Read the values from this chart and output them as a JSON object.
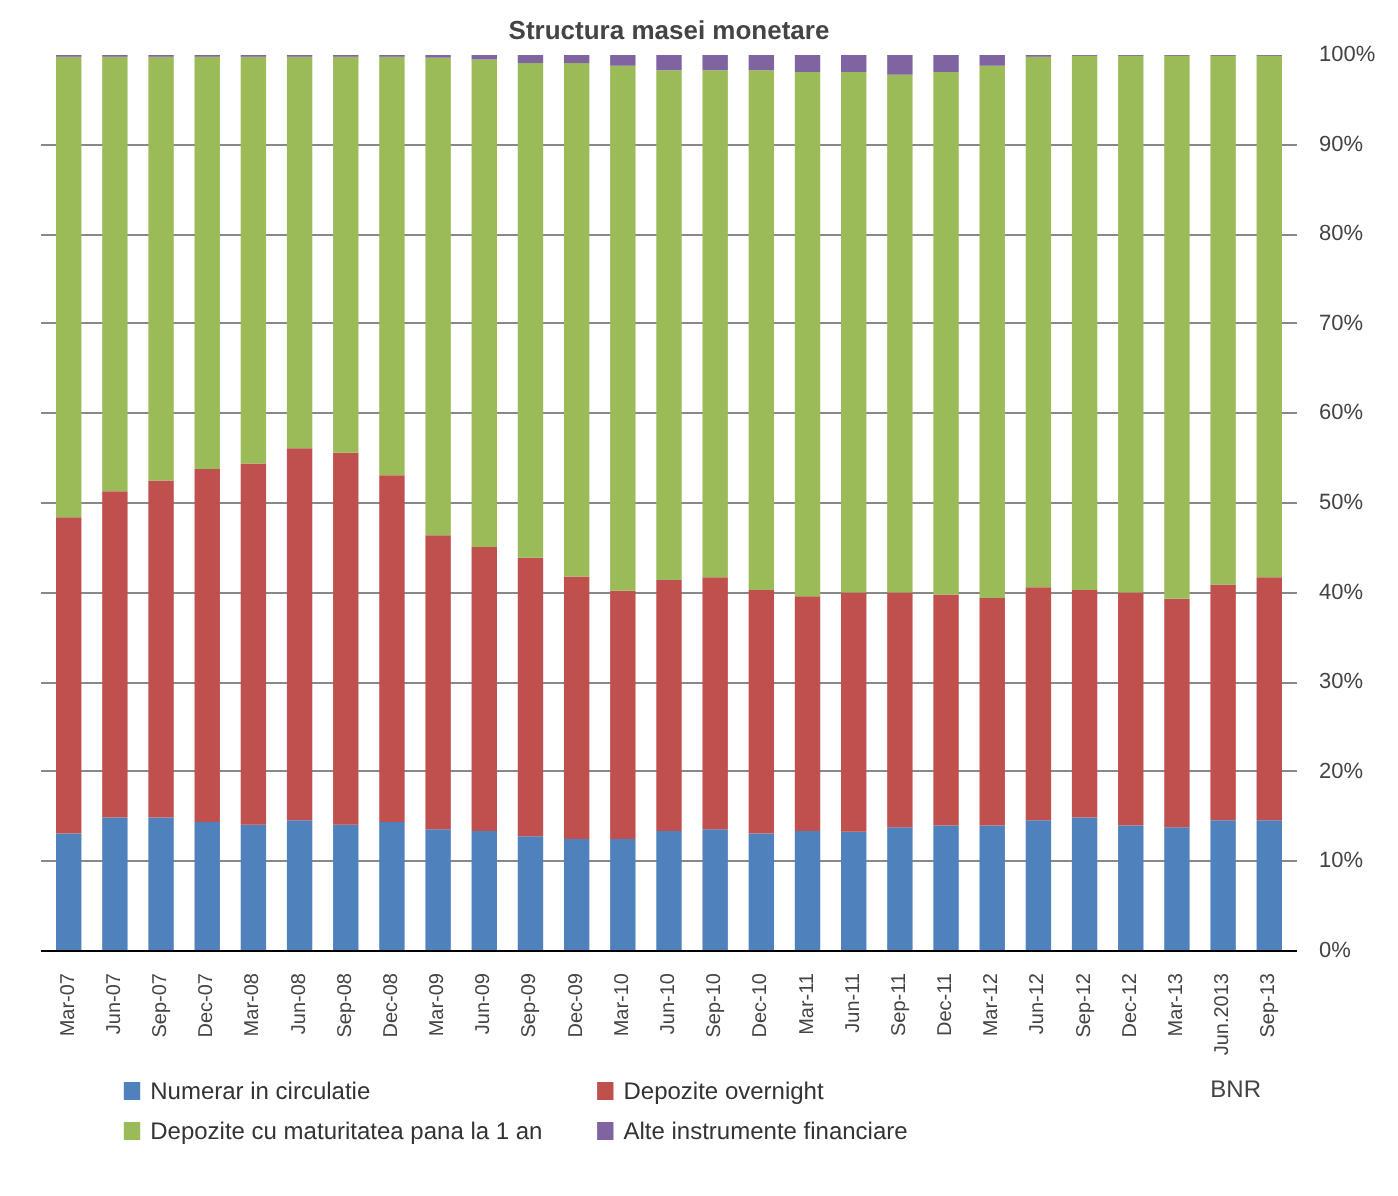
{
  "chart_data": {
    "type": "bar",
    "title": "Structura masei monetare",
    "stacked": true,
    "categories": [
      "Mar-07",
      "Jun-07",
      "Sep-07",
      "Dec-07",
      "Mar-08",
      "Jun-08",
      "Sep-08",
      "Dec-08",
      "Mar-09",
      "Jun-09",
      "Sep-09",
      "Dec-09",
      "Mar-10",
      "Jun-10",
      "Sep-10",
      "Dec-10",
      "Mar-11",
      "Jun-11",
      "Sep-11",
      "Dec-11",
      "Mar-12",
      "Jun-12",
      "Sep-12",
      "Dec-12",
      "Mar-13",
      "Jun.2013",
      "Sep-13"
    ],
    "series": [
      {
        "name": "Numerar in circulatie",
        "color": "#4f81bd",
        "values": [
          13.1,
          14.9,
          14.9,
          14.4,
          14.1,
          14.6,
          14.1,
          14.4,
          13.6,
          13.4,
          12.8,
          12.5,
          12.5,
          13.4,
          13.6,
          13.1,
          13.4,
          13.3,
          13.8,
          14.0,
          14.0,
          14.6,
          14.9,
          14.0,
          13.8,
          14.6,
          14.6
        ]
      },
      {
        "name": "Depozite overnight",
        "color": "#c0504d",
        "values": [
          35.3,
          36.4,
          37.6,
          39.4,
          40.3,
          41.5,
          41.5,
          38.7,
          32.8,
          31.7,
          31.1,
          29.3,
          27.7,
          28.0,
          28.1,
          27.2,
          26.2,
          26.7,
          26.2,
          25.8,
          25.4,
          26.0,
          25.4,
          26.0,
          25.5,
          26.3,
          27.1
        ]
      },
      {
        "name": "Depozite cu maturitatea  pana la 1 an",
        "color": "#9bbb59",
        "values": [
          51.4,
          48.5,
          47.3,
          46.0,
          45.4,
          43.7,
          44.2,
          46.7,
          53.3,
          54.4,
          55.2,
          57.3,
          58.6,
          56.9,
          56.6,
          58.0,
          58.5,
          58.1,
          57.8,
          58.3,
          59.4,
          59.2,
          59.6,
          59.9,
          60.6,
          59.0,
          58.2
        ]
      },
      {
        "name": "Alte instrumente financiare",
        "color": "#8064a2",
        "values": [
          0.2,
          0.2,
          0.2,
          0.2,
          0.2,
          0.2,
          0.2,
          0.2,
          0.3,
          0.5,
          0.9,
          0.9,
          1.2,
          1.7,
          1.7,
          1.7,
          1.9,
          1.9,
          2.2,
          1.9,
          1.2,
          0.2,
          0.1,
          0.1,
          0.1,
          0.1,
          0.1
        ]
      }
    ],
    "ylim": [
      0,
      100
    ],
    "yticks": [
      {
        "value": 0,
        "label": "0%"
      },
      {
        "value": 10,
        "label": "10%"
      },
      {
        "value": 20,
        "label": "20%"
      },
      {
        "value": 30,
        "label": "30%"
      },
      {
        "value": 40,
        "label": "40%"
      },
      {
        "value": 50,
        "label": "50%"
      },
      {
        "value": 60,
        "label": "60%"
      },
      {
        "value": 70,
        "label": "70%"
      },
      {
        "value": 80,
        "label": "80%"
      },
      {
        "value": 90,
        "label": "90%"
      },
      {
        "value": 100,
        "label": "100%"
      }
    ],
    "grid": "y",
    "legend": "bottom",
    "annotations": [
      "BNR"
    ]
  }
}
